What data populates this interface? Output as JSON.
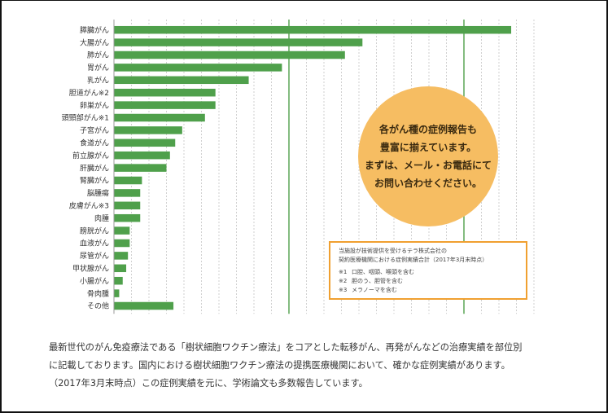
{
  "chart_data": {
    "type": "bar",
    "orientation": "horizontal",
    "categories": [
      "膵臓がん",
      "大腸がん",
      "肺がん",
      "胃がん",
      "乳がん",
      "胆道がん※2",
      "卵巣がん",
      "頭頸部がん※1",
      "子宮がん",
      "食道がん",
      "前立腺がん",
      "肝臓がん",
      "腎臓がん",
      "脳腫瘍",
      "皮膚がん※3",
      "肉腫",
      "膀胱がん",
      "血液がん",
      "尿管がん",
      "甲状腺がん",
      "小腸がん",
      "骨肉腫",
      "その他"
    ],
    "values": [
      227,
      142,
      132,
      96,
      77,
      58,
      58,
      52,
      39,
      35,
      32,
      30,
      16,
      15,
      15,
      15,
      9,
      9,
      8,
      7,
      5,
      3,
      34
    ],
    "xlim": [
      0,
      240
    ],
    "major_gridlines": [
      100,
      200
    ],
    "minor_gridline_step": 10,
    "bar_color": "#4fa04b",
    "major_gridline_color": "#4fa04b",
    "minor_gridline_color": "#cfcfcf",
    "grid": true,
    "legend": false
  },
  "bubble": {
    "lines": [
      "各がん種の症例報告も",
      "豊富に揃えています。",
      "まずは、メール・お電話にて",
      "お問い合わせください。"
    ],
    "color": "#f6bd62"
  },
  "notes": {
    "header_lines": [
      "当施設が技術提供を受けるテラ株式会社の",
      "契約医療機関における症例実績合計（2017年3月末時点）"
    ],
    "items": [
      {
        "mark": "※1",
        "text": "口腔、咽頭、喉頭を含む"
      },
      {
        "mark": "※2",
        "text": "胆のう、胆管を含む"
      },
      {
        "mark": "※3",
        "text": "メラノーマを含む"
      }
    ],
    "border_color": "#f0a030"
  },
  "caption": [
    "最新世代のがん免疫療法である「樹状細胞ワクチン療法」をコアとした転移がん、再発がんなどの治療実績を部位別",
    "に記載しております。国内における樹状細胞ワクチン療法の提携医療機関において、確かな症例実績があります。",
    "（2017年3月末時点）この症例実績を元に、学術論文も多数報告しています。"
  ]
}
